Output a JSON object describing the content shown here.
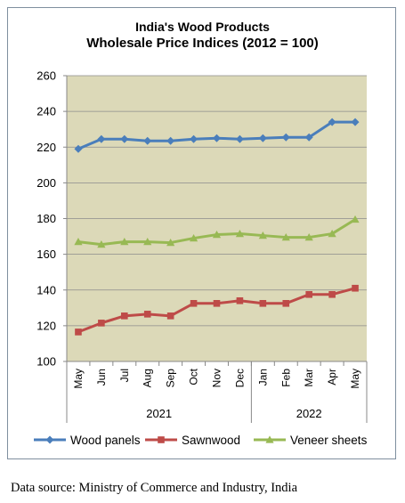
{
  "chart_data": {
    "type": "line",
    "title": "India's Wood Products",
    "subtitle": "Wholesale Price Indices (2012 = 100)",
    "categories": [
      "May",
      "Jun",
      "Jul",
      "Aug",
      "Sep",
      "Oct",
      "Nov",
      "Dec",
      "Jan",
      "Feb",
      "Mar",
      "Apr",
      "May"
    ],
    "year_groups": [
      {
        "label": "2021",
        "start": 0,
        "end": 7
      },
      {
        "label": "2022",
        "start": 8,
        "end": 12
      }
    ],
    "ylim": [
      100,
      260
    ],
    "yticks": [
      "100",
      "120",
      "140",
      "160",
      "180",
      "200",
      "220",
      "240",
      "260"
    ],
    "plot_background": "#dcd9b8",
    "grid": true,
    "legend_position": "bottom",
    "series": [
      {
        "name": "Wood panels",
        "color": "#4a7ebb",
        "marker": "diamond",
        "values": [
          219,
          224.5,
          224.5,
          223.5,
          223.5,
          224.5,
          225,
          224.5,
          225,
          225.5,
          225.5,
          234,
          234
        ]
      },
      {
        "name": "Sawnwood",
        "color": "#be4b48",
        "marker": "square",
        "values": [
          116.5,
          121.5,
          125.5,
          126.5,
          125.5,
          132.5,
          132.5,
          134,
          132.5,
          132.5,
          137.5,
          137.5,
          141
        ]
      },
      {
        "name": "Veneer sheets",
        "color": "#98b954",
        "marker": "triangle",
        "values": [
          167,
          165.5,
          167,
          167,
          166.5,
          169,
          171,
          171.5,
          170.5,
          169.5,
          169.5,
          171.5,
          179.5
        ]
      }
    ]
  },
  "source_text": "Data source: Ministry of Commerce and Industry, India"
}
